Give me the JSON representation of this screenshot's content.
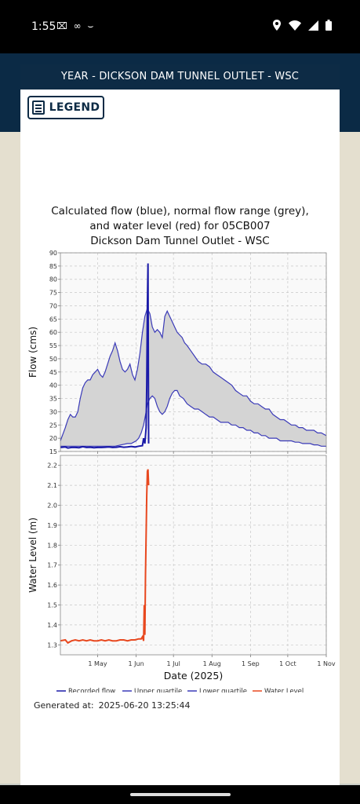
{
  "status_bar": {
    "time": "1:55",
    "left_icons": "⌧ ∞ ⌣"
  },
  "panel": {
    "header_title": "YEAR - DICKSON DAM TUNNEL OUTLET - WSC",
    "legend_button_label": "LEGEND",
    "generated_label": "Generated at:",
    "generated_value": "2025-06-20 13:25:44"
  },
  "colors": {
    "header": "#0d2b45",
    "flow": "#1a1aa8",
    "quartile": "#3a3ab8",
    "range_fill": "#d4d4d4",
    "water_level": "#e8481f"
  },
  "chart_data": {
    "type": "line",
    "title_lines": [
      "Calculated flow (blue), normal flow range (grey),",
      "and water level (red) for 05CB007",
      "Dickson Dam Tunnel Outlet - WSC"
    ],
    "xlabel": "Date (2025)",
    "x_ticks": [
      "1 May",
      "1 Jun",
      "1 Jul",
      "1 Aug",
      "1 Sep",
      "1 Oct",
      "1 Nov"
    ],
    "x_tick_days": [
      121,
      152,
      182,
      213,
      244,
      274,
      305
    ],
    "xlim": [
      91,
      305
    ],
    "panels": [
      {
        "ylabel": "Flow (cms)",
        "ylim": [
          15,
          90
        ],
        "y_ticks": [
          15,
          20,
          25,
          30,
          35,
          40,
          45,
          50,
          55,
          60,
          65,
          70,
          75,
          80,
          85,
          90
        ],
        "series": [
          {
            "name": "Upper quartile",
            "x": [
              91,
              95,
              97,
              99,
              101,
              103,
              105,
              107,
              109,
              111,
              113,
              115,
              117,
              119,
              121,
              123,
              125,
              127,
              129,
              131,
              133,
              135,
              137,
              139,
              141,
              143,
              145,
              147,
              149,
              151,
              153,
              155,
              157,
              159,
              161,
              163,
              165,
              167,
              169,
              171,
              173,
              175,
              177,
              179,
              181,
              183,
              185,
              187,
              189,
              191,
              193,
              196,
              199,
              202,
              205,
              208,
              211,
              214,
              217,
              220,
              223,
              226,
              229,
              232,
              235,
              238,
              241,
              244,
              247,
              250,
              253,
              256,
              259,
              262,
              265,
              268,
              271,
              274,
              277,
              280,
              283,
              286,
              289,
              292,
              295,
              298,
              301,
              305
            ],
            "y": [
              19,
              24,
              27,
              29,
              28,
              28,
              30,
              35,
              39,
              41,
              42,
              42,
              44,
              45,
              46,
              44,
              43,
              45,
              48,
              51,
              53,
              56,
              53,
              49,
              46,
              45,
              46,
              48,
              44,
              42,
              46,
              52,
              60,
              66,
              69,
              67,
              62,
              60,
              61,
              60,
              58,
              66,
              68,
              66,
              64,
              62,
              60,
              59,
              58,
              56,
              55,
              53,
              51,
              49,
              48,
              48,
              47,
              45,
              44,
              43,
              42,
              41,
              40,
              38,
              37,
              36,
              36,
              34,
              33,
              33,
              32,
              31,
              31,
              29,
              28,
              27,
              27,
              26,
              25,
              25,
              24,
              24,
              23,
              23,
              23,
              22,
              22,
              21
            ]
          },
          {
            "name": "Lower quartile",
            "x": [
              91,
              95,
              100,
              105,
              110,
              115,
              120,
              125,
              130,
              135,
              140,
              145,
              148,
              150,
              152,
              154,
              156,
              158,
              160,
              161,
              162,
              163,
              165,
              167,
              169,
              171,
              173,
              175,
              177,
              179,
              181,
              183,
              185,
              187,
              190,
              193,
              196,
              199,
              202,
              205,
              208,
              211,
              214,
              217,
              220,
              223,
              226,
              229,
              232,
              235,
              238,
              241,
              244,
              247,
              250,
              253,
              256,
              259,
              262,
              265,
              268,
              271,
              274,
              277,
              280,
              283,
              286,
              289,
              292,
              295,
              298,
              301,
              305
            ],
            "y": [
              17,
              17,
              17,
              17,
              17,
              17,
              17,
              17,
              17,
              17,
              17.5,
              18,
              18,
              18.5,
              19,
              20,
              22,
              25,
              30,
              33,
              34,
              35,
              36,
              35,
              32,
              30,
              29,
              30,
              32,
              35,
              37,
              38,
              38,
              36,
              35,
              33,
              32,
              31,
              31,
              30,
              29,
              28,
              28,
              27,
              26,
              26,
              26,
              25,
              25,
              24,
              24,
              23,
              23,
              22,
              22,
              21,
              21,
              20,
              20,
              20,
              19,
              19,
              19,
              19,
              18.5,
              18.5,
              18,
              18,
              18,
              17.5,
              17.5,
              17,
              17
            ]
          },
          {
            "name": "Recorded flow",
            "x": [
              91,
              95,
              97,
              100,
              103,
              106,
              109,
              112,
              115,
              118,
              121,
              124,
              127,
              130,
              133,
              136,
              139,
              142,
              145,
              148,
              151,
              154,
              157,
              158,
              159,
              160,
              160.5,
              161,
              161.5,
              162
            ],
            "y": [
              16.5,
              16.7,
              16.3,
              16.5,
              16.5,
              16.4,
              16.8,
              16.5,
              16.6,
              16.4,
              16.5,
              16.5,
              16.6,
              16.7,
              16.5,
              16.6,
              16.8,
              16.6,
              16.7,
              16.9,
              16.7,
              17,
              17.2,
              20,
              18,
              24,
              40,
              70,
              86,
              18
            ]
          }
        ]
      },
      {
        "ylabel": "Water Level (m)",
        "ylim": [
          1.25,
          2.25
        ],
        "y_ticks": [
          1.3,
          1.4,
          1.5,
          1.6,
          1.7,
          1.8,
          1.9,
          2.0,
          2.1,
          2.2
        ],
        "series": [
          {
            "name": "Water Level",
            "x": [
              91,
              95,
              97,
              100,
              103,
              106,
              109,
              112,
              115,
              118,
              121,
              124,
              127,
              130,
              133,
              136,
              139,
              142,
              145,
              148,
              151,
              154,
              156,
              157,
              158,
              158.5,
              159,
              159.5,
              160,
              160.5,
              161,
              161.5,
              162
            ],
            "y": [
              1.32,
              1.325,
              1.31,
              1.32,
              1.325,
              1.32,
              1.325,
              1.32,
              1.325,
              1.32,
              1.32,
              1.325,
              1.32,
              1.325,
              1.32,
              1.32,
              1.325,
              1.325,
              1.32,
              1.325,
              1.325,
              1.33,
              1.33,
              1.34,
              1.32,
              1.5,
              1.35,
              1.65,
              1.85,
              2.05,
              2.17,
              2.18,
              2.1
            ]
          }
        ]
      }
    ],
    "legend": [
      "Recorded flow",
      "Upper quartile",
      "Lower quartile",
      "Water Level"
    ],
    "grid": true,
    "legend_position": "bottom"
  }
}
